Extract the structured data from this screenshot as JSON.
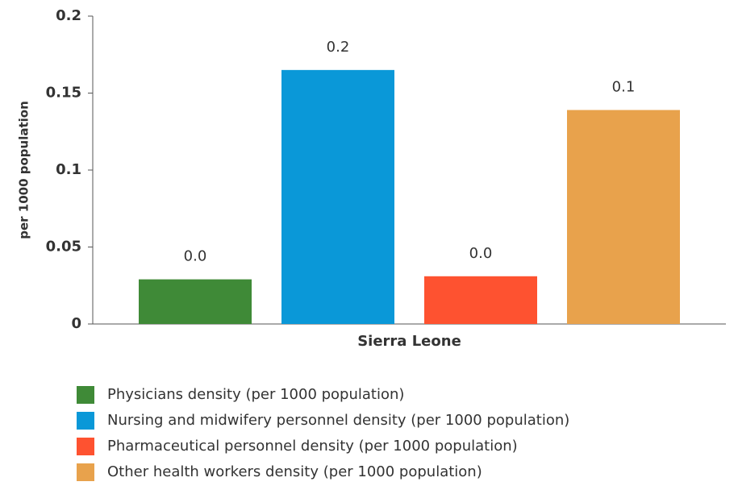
{
  "chart_data": {
    "type": "bar",
    "ylabel": "per 1000 population",
    "categories": [
      "Sierra Leone"
    ],
    "series": [
      {
        "name": "Physicians density (per 1000 population)",
        "color": "#3f8a37",
        "values": [
          0.029
        ],
        "value_labels": [
          "0.0"
        ]
      },
      {
        "name": "Nursing and midwifery personnel density (per 1000 population)",
        "color": "#0a98d8",
        "values": [
          0.165
        ],
        "value_labels": [
          "0.2"
        ]
      },
      {
        "name": "Pharmaceutical personnel density (per 1000 population)",
        "color": "#fe5230",
        "values": [
          0.031
        ],
        "value_labels": [
          "0.0"
        ]
      },
      {
        "name": "Other health workers density (per 1000 population)",
        "color": "#e8a24c",
        "values": [
          0.139
        ],
        "value_labels": [
          "0.1"
        ]
      }
    ],
    "ylim": [
      0,
      0.2
    ],
    "yticks": [
      0,
      0.05,
      0.1,
      0.15,
      0.2
    ],
    "legend": "bottom"
  }
}
